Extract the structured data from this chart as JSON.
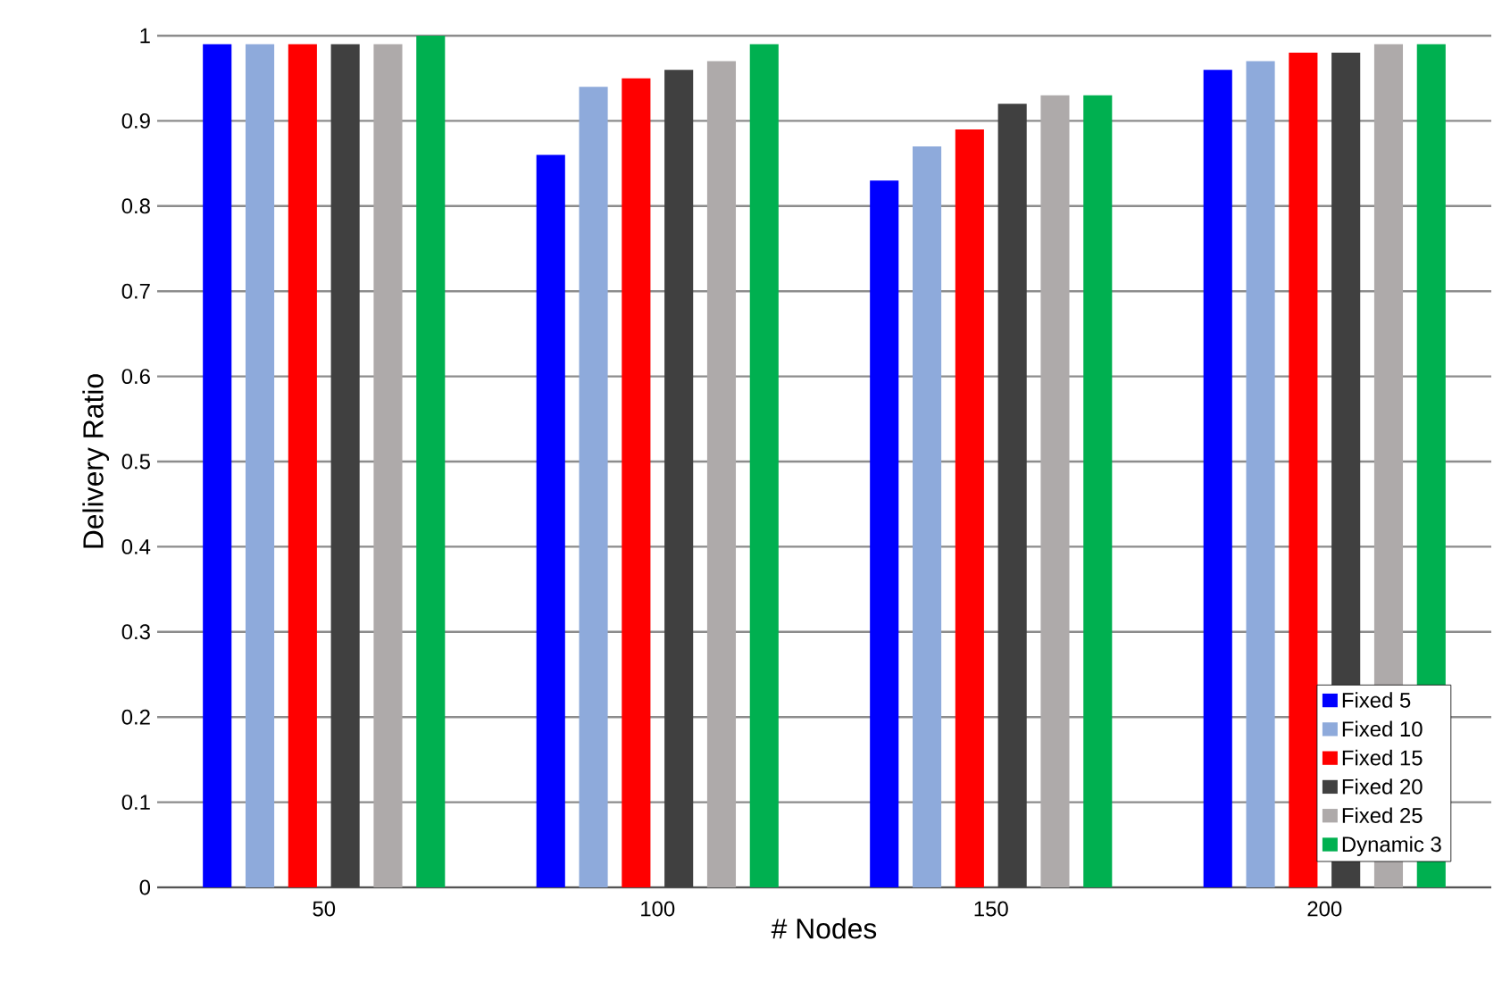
{
  "chart_data": {
    "type": "bar",
    "xlabel": "# Nodes",
    "ylabel": "Delivery Ratio",
    "categories": [
      "50",
      "100",
      "150",
      "200"
    ],
    "series": [
      {
        "name": "Fixed 5",
        "color": "#0000ff",
        "values": [
          0.99,
          0.86,
          0.83,
          0.96
        ]
      },
      {
        "name": "Fixed 10",
        "color": "#8eaadb",
        "values": [
          0.99,
          0.94,
          0.87,
          0.97
        ]
      },
      {
        "name": "Fixed 15",
        "color": "#ff0000",
        "values": [
          0.99,
          0.95,
          0.89,
          0.98
        ]
      },
      {
        "name": "Fixed 20",
        "color": "#404040",
        "values": [
          0.99,
          0.96,
          0.92,
          0.98
        ]
      },
      {
        "name": "Fixed 25",
        "color": "#aeaaaa",
        "values": [
          0.99,
          0.97,
          0.93,
          0.99
        ]
      },
      {
        "name": "Dynamic 3",
        "color": "#00b050",
        "values": [
          1.0,
          0.99,
          0.93,
          0.99
        ]
      }
    ],
    "ylim": [
      0,
      1
    ],
    "yticks": [
      0,
      0.1,
      0.2,
      0.3,
      0.4,
      0.5,
      0.6,
      0.7,
      0.8,
      0.9,
      1
    ],
    "grid": "y",
    "legend": "bottom right"
  }
}
